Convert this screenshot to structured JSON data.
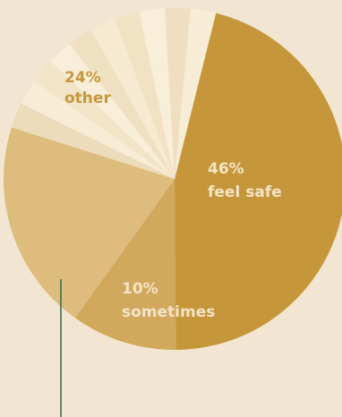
{
  "chart_data": {
    "type": "pie",
    "slices": [
      {
        "value": 46,
        "color": "#C6973A",
        "label_pct": "46%",
        "label_text": "feel safe",
        "label_color": "#F3E4C8"
      },
      {
        "value": 10,
        "color": "#D2A85C",
        "label_pct": "10%",
        "label_text": "sometimes",
        "label_color": "#F3E4C8"
      },
      {
        "value": 20,
        "color": "#DDBC7E"
      },
      {
        "value": 2.4,
        "color": "#EDDCBC"
      },
      {
        "value": 2.4,
        "color": "#F7ECD5"
      },
      {
        "value": 2.4,
        "color": "#F2E4C7"
      },
      {
        "value": 2.4,
        "color": "#F8EED9"
      },
      {
        "value": 2.4,
        "color": "#EFE0C2"
      },
      {
        "value": 2.4,
        "color": "#F6EAD0"
      },
      {
        "value": 2.4,
        "color": "#F1E2C4"
      },
      {
        "value": 2.4,
        "color": "#F8EEDA"
      },
      {
        "value": 2.4,
        "color": "#EFDFC0"
      },
      {
        "value": 2.4,
        "color": "#F7ECD6"
      }
    ],
    "other_label": {
      "pct": "24%",
      "text": "other",
      "color": "#C6973A"
    },
    "pointer_color": "#2E6B4E"
  }
}
